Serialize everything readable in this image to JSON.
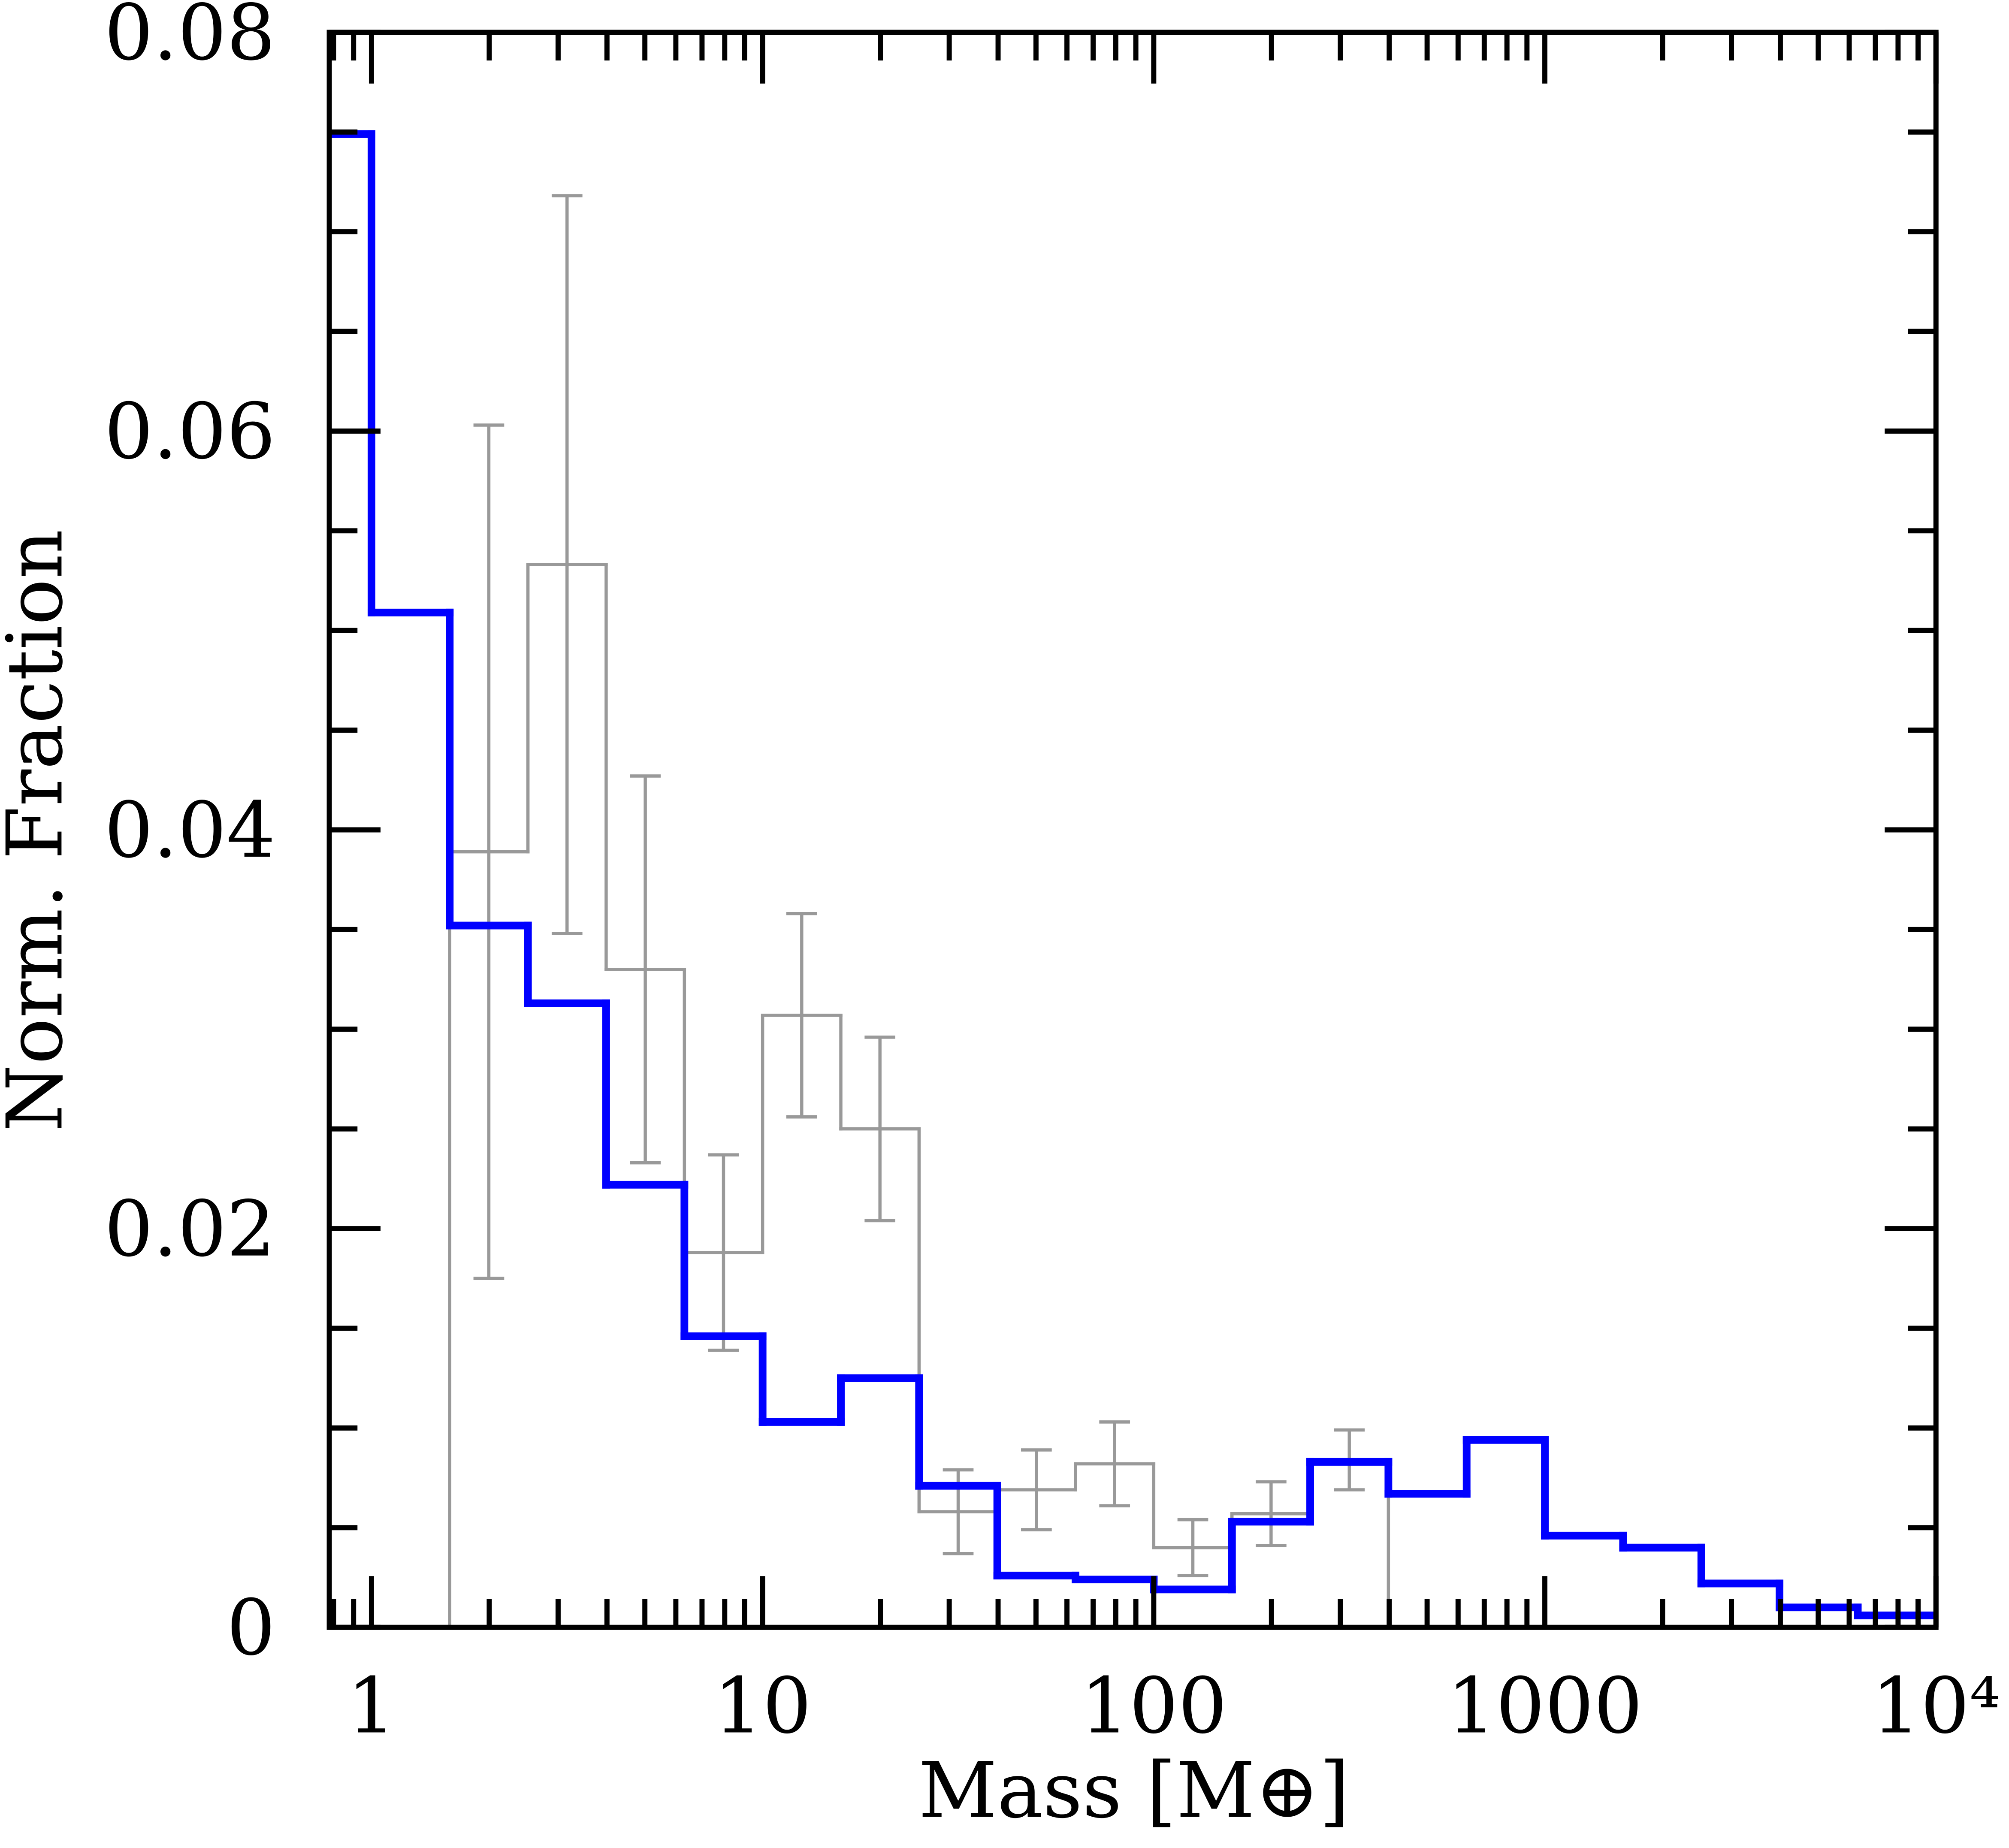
{
  "chart_data": {
    "type": "histogram",
    "xlabel": "Mass [M⊕]",
    "ylabel": "Norm. Fraction",
    "xscale": "log",
    "xlim": [
      0.78,
      10000
    ],
    "xticks": [
      1,
      10,
      100,
      1000,
      {
        "value": 10000,
        "label": "10⁴"
      }
    ],
    "ylim": [
      0,
      0.08
    ],
    "yticks": [
      0,
      0.02,
      0.04,
      0.06,
      0.08
    ],
    "series": [
      {
        "color": "#0000ff",
        "bins": [
          0.631,
          1,
          1.585,
          2.512,
          3.981,
          6.31,
          10,
          15.85,
          25.12,
          39.81,
          63.1,
          100,
          158.5,
          251.2,
          398.1,
          631,
          1000,
          1585,
          2512,
          3981,
          6310,
          10000
        ],
        "values": [
          0.0749,
          0.0509,
          0.0352,
          0.0313,
          0.0222,
          0.0146,
          0.0103,
          0.0125,
          0.0071,
          0.0026,
          0.0024,
          0.0019,
          0.0053,
          0.0083,
          0.0067,
          0.0094,
          0.0046,
          0.004,
          0.0022,
          0.001,
          0.0006
        ]
      },
      {
        "color": "#999999",
        "bins": [
          1.585,
          2.512,
          3.981,
          6.31,
          10,
          15.85,
          25.12,
          39.81,
          63.1,
          100,
          158.5,
          251.2,
          398.1
        ],
        "values": [
          0.0389,
          0.0533,
          0.033,
          0.0188,
          0.0307,
          0.025,
          0.0058,
          0.0069,
          0.0082,
          0.004,
          0.0057,
          0.0084
        ],
        "errors": [
          0.0214,
          0.0185,
          0.0097,
          0.0049,
          0.0051,
          0.0046,
          0.0021,
          0.002,
          0.0021,
          0.0014,
          0.0016,
          0.0015
        ]
      }
    ]
  }
}
